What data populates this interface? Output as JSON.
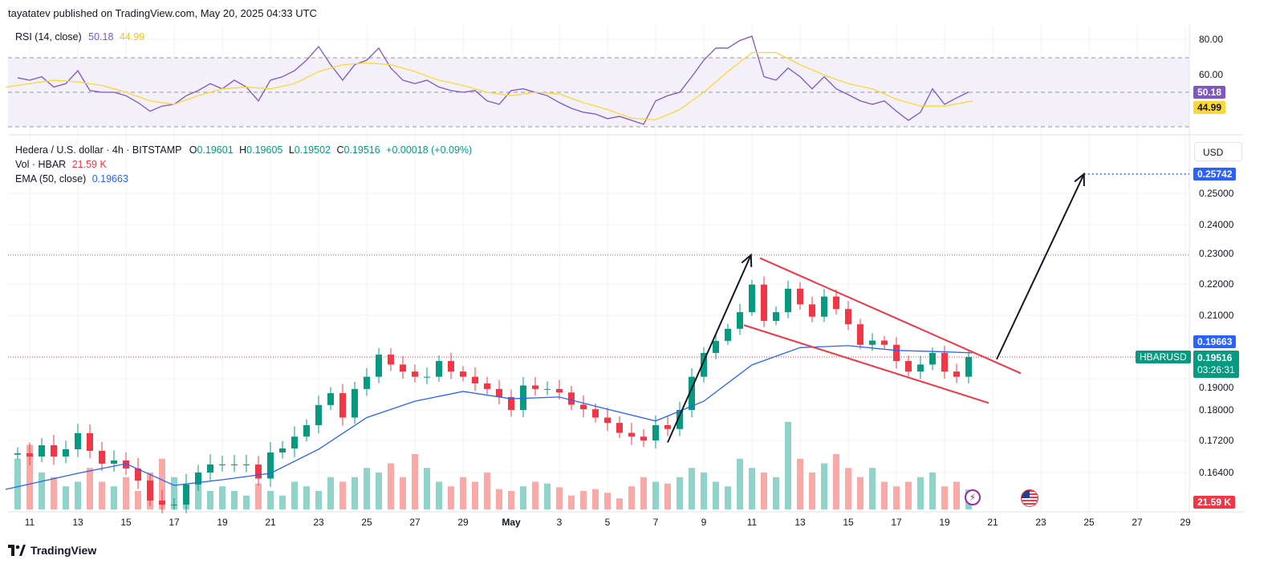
{
  "header": {
    "published": "tayatatev published on TradingView.com, May 20, 2025 04:33 UTC"
  },
  "rsi_legend": {
    "label": "RSI (14, close)",
    "rsi_value": "50.18",
    "ma_value": "44.99"
  },
  "main_legend": {
    "symbol": "Hedera / U.S. dollar · 4h · BITSTAMP",
    "o_label": "O",
    "o": "0.19601",
    "h_label": "H",
    "h": "0.19605",
    "l_label": "L",
    "l": "0.19502",
    "c_label": "C",
    "c": "0.19516",
    "change": "+0.00018 (+0.09%)",
    "vol_label": "Vol · HBAR",
    "vol": "21.59 K",
    "ema_label": "EMA (50, close)",
    "ema": "0.19663"
  },
  "price_axis": {
    "currency_button": "USD",
    "ticks": [
      "0.25000",
      "0.24000",
      "0.23000",
      "0.22000",
      "0.21000",
      "0.19000",
      "0.18000",
      "0.17200",
      "0.16400"
    ],
    "target_badge": "0.25742",
    "ema_badge": "0.19663",
    "price_badge": "0.19516",
    "countdown": "03:26:31",
    "symbol_badge": "HBARUSD",
    "volume_badge": "21.59 K"
  },
  "rsi_axis": {
    "ticks": [
      "80.00",
      "60.00"
    ],
    "rsi_badge": "50.18",
    "ma_badge": "44.99"
  },
  "time_axis": {
    "ticks": [
      "11",
      "13",
      "15",
      "17",
      "19",
      "21",
      "23",
      "25",
      "27",
      "29",
      "May",
      "3",
      "5",
      "7",
      "9",
      "11",
      "13",
      "15",
      "17",
      "19",
      "21",
      "23",
      "25",
      "27",
      "29"
    ]
  },
  "footer": {
    "brand": "TradingView"
  },
  "colors": {
    "up": "#089981",
    "down": "#f23645",
    "ema": "#2962ff",
    "rsi": "#7e57c2",
    "rsi_ma": "#fdd835",
    "trendline": "#f23645",
    "arrow": "#131722",
    "target": "#2962ff"
  },
  "icons": [
    "lightning-icon",
    "us-flag-icon",
    "tradingview-logo-icon"
  ],
  "chart_data": [
    {
      "type": "candlestick",
      "title": "Hedera / U.S. dollar · 4h · BITSTAMP",
      "scale": "log-like price axis",
      "grid": true,
      "ylim": [
        0.155,
        0.262
      ],
      "close_sampled": {
        "start": "2025-04-10 12:00",
        "interval": "12h",
        "values": [
          0.1688,
          0.168,
          0.1708,
          0.168,
          0.1698,
          0.1739,
          0.1694,
          0.1662,
          0.167,
          0.165,
          0.162,
          0.157,
          0.156,
          0.156,
          0.161,
          0.164,
          0.166,
          0.166,
          0.166,
          0.166,
          0.1625,
          0.169,
          0.17,
          0.173,
          0.176,
          0.1814,
          0.1848,
          0.178,
          0.186,
          0.1895,
          0.196,
          0.193,
          0.191,
          0.1895,
          0.1895,
          0.194,
          0.191,
          0.1895,
          0.1876,
          0.186,
          0.1837,
          0.18,
          0.187,
          0.186,
          0.186,
          0.185,
          0.1815,
          0.1802,
          0.178,
          0.1766,
          0.174,
          0.173,
          0.172,
          0.176,
          0.175,
          0.18,
          0.1895,
          0.1966,
          0.2009,
          0.2052,
          0.211,
          0.2198,
          0.208,
          0.211,
          0.2185,
          0.2135,
          0.2095,
          0.216,
          0.212,
          0.2068,
          0.1995,
          0.201,
          0.1995,
          0.194,
          0.191,
          0.193,
          0.1966,
          0.191,
          0.1895,
          0.19516
        ]
      },
      "volume_k_sampled": [
        55,
        70,
        40,
        35,
        25,
        30,
        45,
        30,
        25,
        35,
        20,
        40,
        55,
        35,
        25,
        30,
        20,
        25,
        20,
        15,
        28,
        20,
        15,
        30,
        25,
        20,
        35,
        30,
        35,
        45,
        40,
        50,
        35,
        60,
        45,
        30,
        25,
        35,
        30,
        40,
        22,
        20,
        25,
        30,
        28,
        24,
        15,
        20,
        22,
        18,
        12,
        25,
        35,
        30,
        28,
        35,
        45,
        40,
        30,
        25,
        55,
        45,
        40,
        35,
        95,
        55,
        40,
        50,
        60,
        45,
        35,
        45,
        30,
        25,
        30,
        35,
        40,
        25,
        30,
        21.59
      ],
      "ema50": {
        "dates": [
          "2025-04-10",
          "2025-04-13",
          "2025-04-15",
          "2025-04-17",
          "2025-04-19",
          "2025-04-21",
          "2025-04-23",
          "2025-04-25",
          "2025-04-27",
          "2025-04-29",
          "2025-05-01",
          "2025-05-03",
          "2025-05-05",
          "2025-05-07",
          "2025-05-09",
          "2025-05-11",
          "2025-05-13",
          "2025-05-15",
          "2025-05-17",
          "2025-05-19",
          "2025-05-20 04:00"
        ],
        "values": [
          0.1598,
          0.1638,
          0.1662,
          0.1608,
          0.1622,
          0.1638,
          0.1698,
          0.178,
          0.1825,
          0.1853,
          0.1832,
          0.1837,
          0.1802,
          0.1771,
          0.1825,
          0.1929,
          0.1985,
          0.1992,
          0.1975,
          0.197,
          0.19663
        ]
      },
      "drawings": {
        "resistance_level": 0.2295,
        "target_level": 0.25742,
        "arrow_1": {
          "from": [
            "2025-05-07 12:00",
            0.1715
          ],
          "to": [
            "2025-05-10 23:00",
            0.2295
          ]
        },
        "arrow_2": {
          "from": [
            "2025-05-21 04:00",
            0.1945
          ],
          "to": [
            "2025-05-24 19:00",
            0.25742
          ]
        },
        "channel_upper": {
          "from": [
            "2025-05-11 08:00",
            0.2285
          ],
          "to": [
            "2025-05-22 04:00",
            0.1905
          ]
        },
        "channel_lower": {
          "from": [
            "2025-05-10 16:00",
            0.2065
          ],
          "to": [
            "2025-05-20 20:00",
            0.182
          ]
        }
      }
    },
    {
      "type": "line",
      "title": "RSI (14, close)",
      "ylim": [
        20,
        90
      ],
      "bands": [
        30,
        50,
        70
      ],
      "series": [
        {
          "name": "RSI",
          "start": "2025-04-10 12:00",
          "interval": "12h",
          "values": [
            58.4,
            57,
            59,
            53,
            55,
            62.5,
            51,
            50,
            50,
            48,
            44,
            39,
            42,
            43,
            48,
            51,
            55,
            52,
            57,
            53,
            45,
            57,
            59,
            62.5,
            68.6,
            76.5,
            66,
            57,
            66,
            68.6,
            75.6,
            64,
            57,
            55,
            57,
            53,
            51,
            50,
            51,
            45,
            43,
            51,
            52,
            50,
            48,
            44,
            40.7,
            38.4,
            37.4,
            34.7,
            36,
            33.7,
            31.4,
            45,
            48,
            50,
            59,
            68.6,
            75.6,
            75.6,
            80,
            82.5,
            59,
            57,
            64,
            59,
            52,
            59,
            52,
            48.6,
            45,
            43,
            45,
            39,
            33.7,
            38.4,
            52,
            43,
            46.7,
            50.18
          ]
        },
        {
          "name": "RSI MA",
          "start": "2025-04-10 00:00",
          "interval": "24h",
          "values": [
            53,
            55,
            57,
            56,
            54,
            50,
            45,
            43,
            48,
            52,
            53,
            52,
            55,
            62,
            66,
            67,
            66,
            62,
            57,
            54,
            50,
            48,
            50,
            49,
            44,
            40,
            35,
            34,
            40,
            50,
            62,
            73,
            73,
            66,
            60,
            55,
            52,
            46,
            42,
            42,
            44.99
          ]
        }
      ]
    }
  ]
}
